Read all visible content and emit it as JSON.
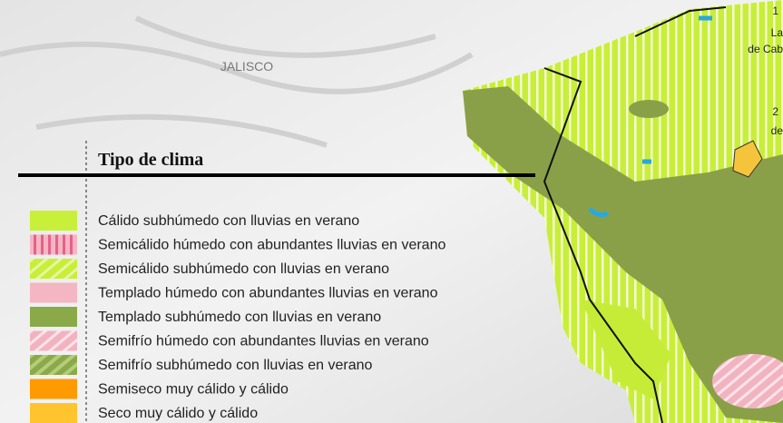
{
  "map": {
    "state_label": "JALISCO",
    "edge_labels": [
      "1",
      "La",
      "de Cab",
      "2",
      "de"
    ],
    "legend": {
      "title": "Tipo de clima",
      "items": [
        "Cálido subhúmedo con lluvias en verano",
        "Semicálido húmedo con abundantes lluvias en verano",
        "Semicálido subhúmedo con lluvias en verano",
        "Templado húmedo con abundantes lluvias en verano",
        "Templado subhúmedo con lluvias en verano",
        "Semifrío húmedo con abundantes lluvias en verano",
        "Semifrío subhúmedo con  lluvias en verano",
        "Semiseco muy cálido y cálido",
        "Seco muy cálido y cálido"
      ]
    }
  }
}
